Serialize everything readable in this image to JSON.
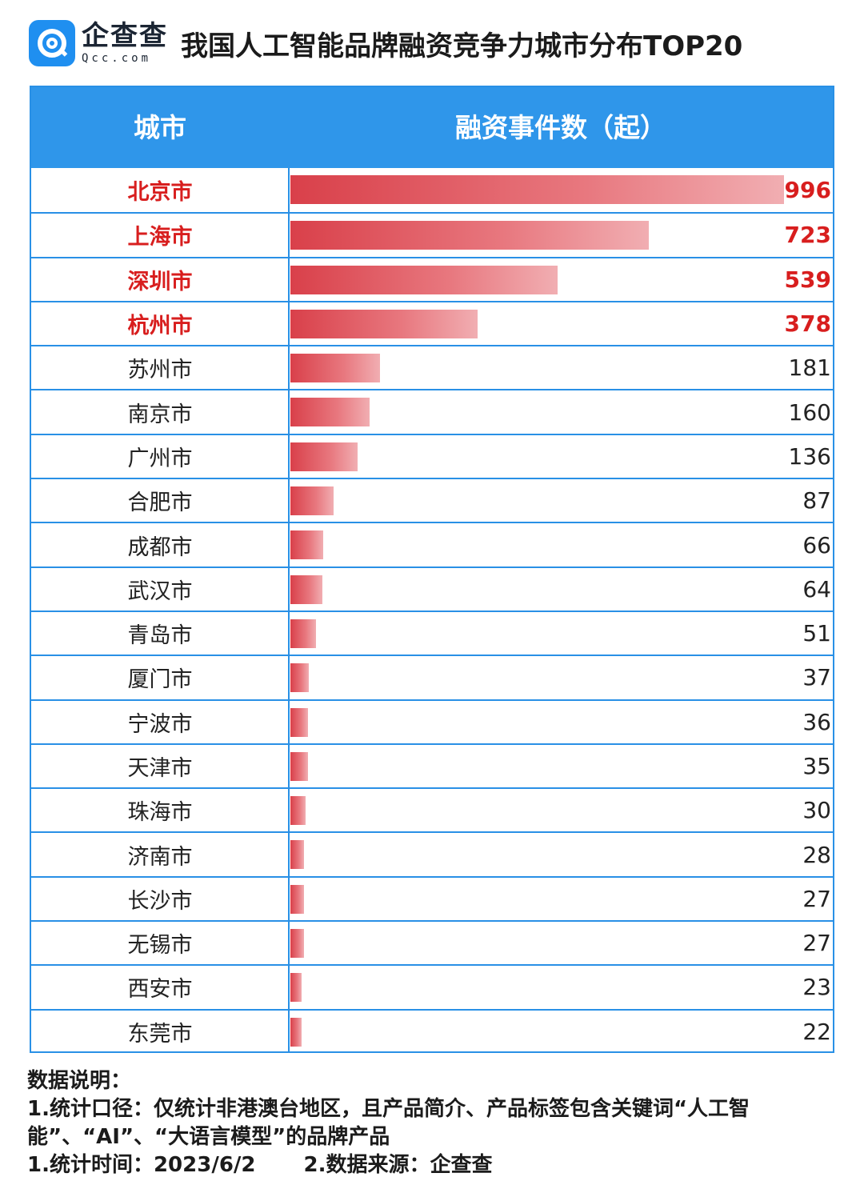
{
  "logo": {
    "cn": "企查查",
    "en": "Qcc.com"
  },
  "title": "我国人工智能品牌融资竞争力城市分布TOP20",
  "columns": {
    "city": "城市",
    "count": "融资事件数（起）"
  },
  "chart_data": {
    "type": "bar",
    "orientation": "horizontal",
    "title": "我国人工智能品牌融资竞争力城市分布TOP20",
    "categories": [
      "北京市",
      "上海市",
      "深圳市",
      "杭州市",
      "苏州市",
      "南京市",
      "广州市",
      "合肥市",
      "成都市",
      "武汉市",
      "青岛市",
      "厦门市",
      "宁波市",
      "天津市",
      "珠海市",
      "济南市",
      "长沙市",
      "无锡市",
      "西安市",
      "东莞市"
    ],
    "values": [
      996,
      723,
      539,
      378,
      181,
      160,
      136,
      87,
      66,
      64,
      51,
      37,
      36,
      35,
      30,
      28,
      27,
      27,
      23,
      22
    ],
    "highlighted_top": 4,
    "colors": {
      "bar": "#d9404a",
      "highlight_text": "#d81e1e",
      "header": "#2f96ea"
    }
  },
  "notes": {
    "heading": "数据说明：",
    "line1": "1.统计口径：仅统计非港澳台地区，且产品简介、产品标签包含关键词“人工智能”、“AI”、“大语言模型”的品牌产品",
    "time": "1.统计时间：2023/6/2",
    "source": "2.数据来源：企查查"
  }
}
